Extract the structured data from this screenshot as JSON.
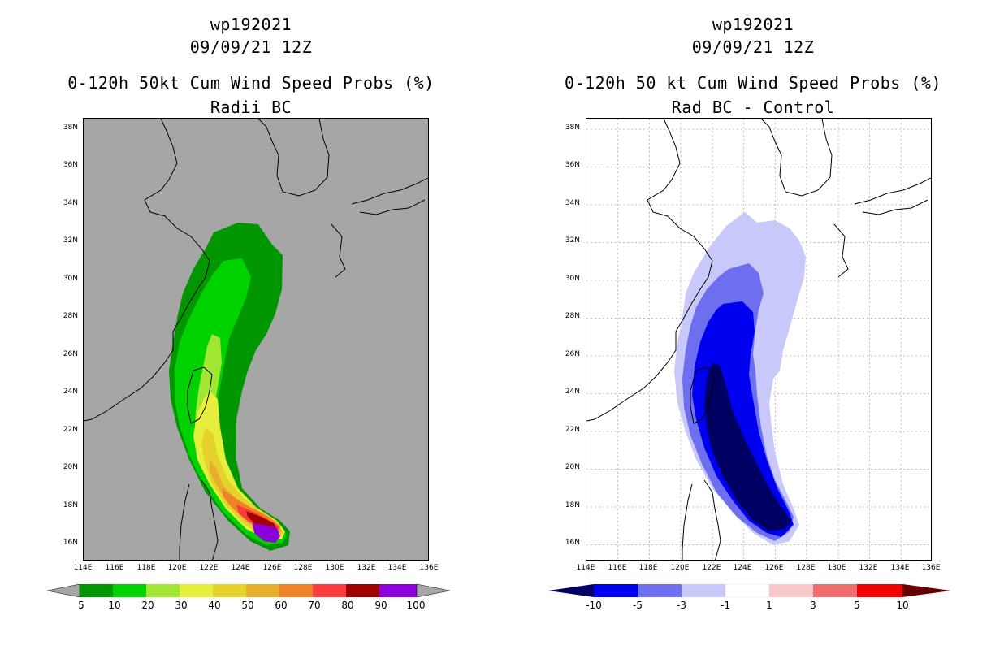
{
  "panels": [
    {
      "id": "left",
      "title1": "wp192021",
      "title2": "09/09/21 12Z",
      "title3": "0-120h 50kt Cum Wind Speed Probs (%)",
      "title4": "Radii BC",
      "colorbar": {
        "labels": [
          "5",
          "10",
          "20",
          "30",
          "40",
          "50",
          "60",
          "70",
          "80",
          "90",
          "100"
        ],
        "colors": [
          "#009600",
          "#00d200",
          "#a0e632",
          "#e6f03c",
          "#e6d22d",
          "#e6af2d",
          "#f08228",
          "#fa3c3c",
          "#a00000",
          "#8c00dc"
        ],
        "end_color": "#a6a6a6"
      }
    },
    {
      "id": "right",
      "title1": "wp192021",
      "title2": "09/09/21 12Z",
      "title3": "0-120h 50 kt Cum Wind Speed Probs (%)",
      "title4": "Rad BC - Control",
      "colorbar": {
        "labels": [
          "-10",
          "-5",
          "-3",
          "-1",
          "1",
          "3",
          "5",
          "10"
        ],
        "colors": [
          "#0000f0",
          "#6e6ef0",
          "#c8c8fa",
          "#ffffff",
          "#fac8c8",
          "#f06e6e",
          "#f00000"
        ],
        "low_color": "#000064",
        "high_color": "#640000"
      }
    }
  ],
  "axes": {
    "lat_labels": [
      "38N",
      "36N",
      "34N",
      "32N",
      "30N",
      "28N",
      "26N",
      "24N",
      "22N",
      "20N",
      "18N",
      "16N"
    ],
    "lon_labels": [
      "114E",
      "116E",
      "118E",
      "120E",
      "122E",
      "124E",
      "126E",
      "128E",
      "130E",
      "132E",
      "134E",
      "136E"
    ]
  },
  "chart_data": [
    {
      "type": "heatmap",
      "title": "0-120h 50kt Cum Wind Speed Probs (%)",
      "subtitle": "Radii BC",
      "storm": "wp192021",
      "time": "09/09/21 12Z",
      "xlim": [
        114,
        136
      ],
      "ylim": [
        15,
        38.5
      ],
      "x_ticks": [
        "114E",
        "116E",
        "118E",
        "120E",
        "122E",
        "124E",
        "126E",
        "128E",
        "130E",
        "132E",
        "134E",
        "136E"
      ],
      "y_ticks": [
        "16N",
        "18N",
        "20N",
        "22N",
        "24N",
        "26N",
        "28N",
        "30N",
        "32N",
        "34N",
        "36N",
        "38N"
      ],
      "levels": [
        5,
        10,
        20,
        30,
        40,
        50,
        60,
        70,
        80,
        90,
        100
      ],
      "max_probability_location": [
        125.5,
        16.4
      ],
      "track_approx": [
        [
          126.0,
          16.2
        ],
        [
          124.5,
          17.5
        ],
        [
          123.0,
          19.5
        ],
        [
          122.0,
          22.0
        ],
        [
          121.7,
          24.5
        ],
        [
          122.0,
          27.0
        ],
        [
          122.5,
          29.5
        ],
        [
          123.0,
          32.0
        ]
      ]
    },
    {
      "type": "heatmap",
      "title": "0-120h 50 kt Cum Wind Speed Probs (%)",
      "subtitle": "Rad BC - Control",
      "storm": "wp192021",
      "time": "09/09/21 12Z",
      "xlim": [
        114,
        136
      ],
      "ylim": [
        15,
        38.5
      ],
      "x_ticks": [
        "114E",
        "116E",
        "118E",
        "120E",
        "122E",
        "124E",
        "126E",
        "128E",
        "130E",
        "132E",
        "134E",
        "136E"
      ],
      "y_ticks": [
        "16N",
        "18N",
        "20N",
        "22N",
        "24N",
        "26N",
        "28N",
        "30N",
        "32N",
        "34N",
        "36N",
        "38N"
      ],
      "levels": [
        -10,
        -5,
        -3,
        -1,
        1,
        3,
        5,
        10
      ],
      "grid": true
    }
  ],
  "colors": {
    "map_bg_left": "#a6a6a6",
    "map_bg_right": "#ffffff",
    "coast": "#000000",
    "grid": "#c0c0c0"
  }
}
